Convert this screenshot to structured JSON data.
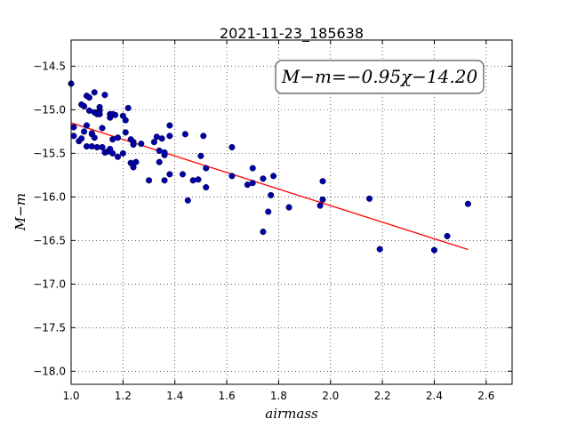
{
  "chart_data": {
    "type": "scatter",
    "title": "2021-11-23_185638",
    "xlabel": "airmass",
    "ylabel": "M−m",
    "xlim": [
      1.0,
      2.7
    ],
    "ylim": [
      -18.15,
      -14.2
    ],
    "xticks": [
      "1.0",
      "1.2",
      "1.4",
      "1.6",
      "1.8",
      "2.0",
      "2.2",
      "2.4",
      "2.6"
    ],
    "yticks": [
      "−14.5",
      "−15.0",
      "−15.5",
      "−16.0",
      "−16.5",
      "−17.0",
      "−17.5",
      "−18.0"
    ],
    "grid": true,
    "annotation": "M−m=−0.95χ−14.20",
    "colors": {
      "points": "#0000aa",
      "fit": "#ff0000"
    },
    "fit": {
      "slope": -0.95,
      "intercept": -14.2,
      "x_range": [
        1.0,
        2.53
      ]
    },
    "points": [
      [
        1.0,
        -14.7
      ],
      [
        1.01,
        -15.2
      ],
      [
        1.01,
        -15.3
      ],
      [
        1.03,
        -15.36
      ],
      [
        1.04,
        -15.33
      ],
      [
        1.04,
        -14.94
      ],
      [
        1.05,
        -15.25
      ],
      [
        1.05,
        -14.96
      ],
      [
        1.06,
        -14.84
      ],
      [
        1.06,
        -15.42
      ],
      [
        1.06,
        -15.18
      ],
      [
        1.07,
        -15.01
      ],
      [
        1.07,
        -14.86
      ],
      [
        1.08,
        -15.27
      ],
      [
        1.08,
        -15.28
      ],
      [
        1.08,
        -15.42
      ],
      [
        1.09,
        -14.8
      ],
      [
        1.09,
        -15.03
      ],
      [
        1.09,
        -15.32
      ],
      [
        1.1,
        -15.05
      ],
      [
        1.1,
        -15.43
      ],
      [
        1.11,
        -15.01
      ],
      [
        1.11,
        -15.05
      ],
      [
        1.11,
        -14.97
      ],
      [
        1.12,
        -15.21
      ],
      [
        1.12,
        -15.43
      ],
      [
        1.13,
        -14.83
      ],
      [
        1.13,
        -15.49
      ],
      [
        1.14,
        -15.48
      ],
      [
        1.15,
        -15.45
      ],
      [
        1.15,
        -15.09
      ],
      [
        1.15,
        -15.05
      ],
      [
        1.16,
        -15.05
      ],
      [
        1.16,
        -15.5
      ],
      [
        1.16,
        -15.34
      ],
      [
        1.17,
        -15.06
      ],
      [
        1.18,
        -15.54
      ],
      [
        1.18,
        -15.32
      ],
      [
        1.2,
        -15.5
      ],
      [
        1.2,
        -15.07
      ],
      [
        1.21,
        -15.12
      ],
      [
        1.21,
        -15.26
      ],
      [
        1.22,
        -14.98
      ],
      [
        1.23,
        -15.34
      ],
      [
        1.23,
        -15.61
      ],
      [
        1.24,
        -15.37
      ],
      [
        1.24,
        -15.4
      ],
      [
        1.24,
        -15.66
      ],
      [
        1.25,
        -15.6
      ],
      [
        1.27,
        -15.39
      ],
      [
        1.3,
        -15.81
      ],
      [
        1.32,
        -15.37
      ],
      [
        1.33,
        -15.31
      ],
      [
        1.34,
        -15.47
      ],
      [
        1.34,
        -15.6
      ],
      [
        1.35,
        -15.33
      ],
      [
        1.36,
        -15.81
      ],
      [
        1.36,
        -15.52
      ],
      [
        1.36,
        -15.49
      ],
      [
        1.38,
        -15.18
      ],
      [
        1.38,
        -15.74
      ],
      [
        1.38,
        -15.3
      ],
      [
        1.43,
        -15.74
      ],
      [
        1.44,
        -15.28
      ],
      [
        1.45,
        -16.04
      ],
      [
        1.47,
        -15.81
      ],
      [
        1.49,
        -15.8
      ],
      [
        1.5,
        -15.53
      ],
      [
        1.51,
        -15.3
      ],
      [
        1.52,
        -15.89
      ],
      [
        1.52,
        -15.67
      ],
      [
        1.62,
        -15.43
      ],
      [
        1.62,
        -15.76
      ],
      [
        1.68,
        -15.86
      ],
      [
        1.7,
        -15.67
      ],
      [
        1.7,
        -15.84
      ],
      [
        1.74,
        -15.79
      ],
      [
        1.74,
        -16.4
      ],
      [
        1.76,
        -16.17
      ],
      [
        1.77,
        -15.98
      ],
      [
        1.78,
        -15.76
      ],
      [
        1.84,
        -16.12
      ],
      [
        1.96,
        -16.1
      ],
      [
        1.97,
        -16.03
      ],
      [
        1.97,
        -15.82
      ],
      [
        2.15,
        -16.02
      ],
      [
        2.19,
        -16.6
      ],
      [
        2.4,
        -16.61
      ],
      [
        2.45,
        -16.45
      ],
      [
        2.53,
        -16.08
      ]
    ]
  }
}
